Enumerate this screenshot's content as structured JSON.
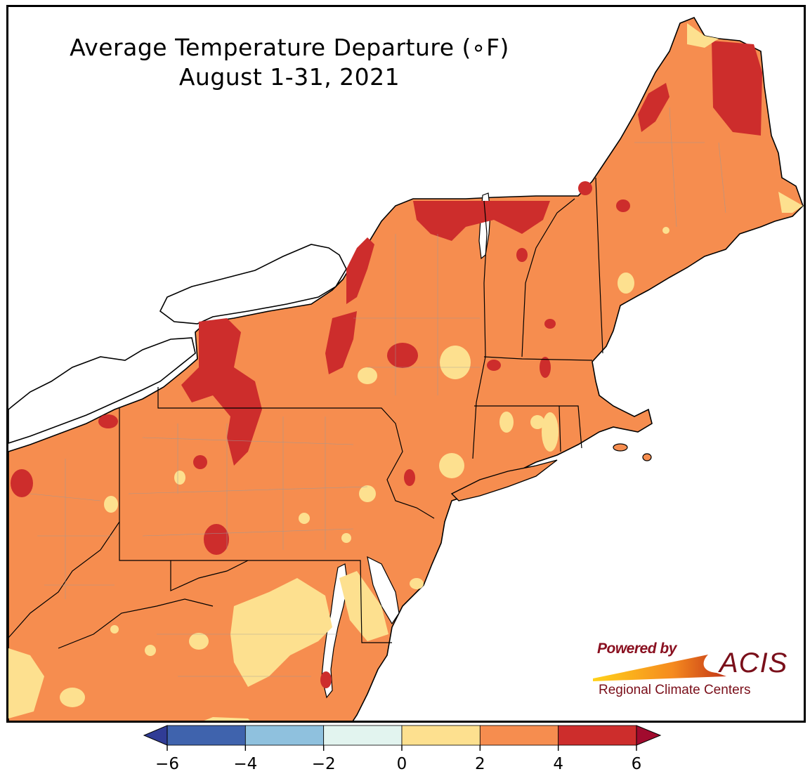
{
  "title": {
    "line1": "Average Temperature Departure (∘F)",
    "line2": "August 1-31, 2021"
  },
  "logo": {
    "powered_by": "Powered by",
    "name": "ACIS",
    "subtitle": "Regional Climate Centers"
  },
  "legend": {
    "ticks": [
      "−6",
      "−4",
      "−2",
      "0",
      "2",
      "4",
      "6"
    ],
    "bins": [
      {
        "range": "-6 to -4",
        "color": "#3f63ad"
      },
      {
        "range": "-4 to -2",
        "color": "#8fc1de"
      },
      {
        "range": "-2 to 0",
        "color": "#e2f4ef"
      },
      {
        "range": "0 to 2",
        "color": "#fde08f"
      },
      {
        "range": "2 to 4",
        "color": "#f68d4f"
      },
      {
        "range": "4 to 6",
        "color": "#cd2d2c"
      }
    ],
    "under_color": "#303c96",
    "over_color": "#a10b2e"
  },
  "colors": {
    "water": "#ffffff",
    "land_base": "#f68d4f",
    "border": "#000000",
    "county_line": "#9a9a9a"
  }
}
